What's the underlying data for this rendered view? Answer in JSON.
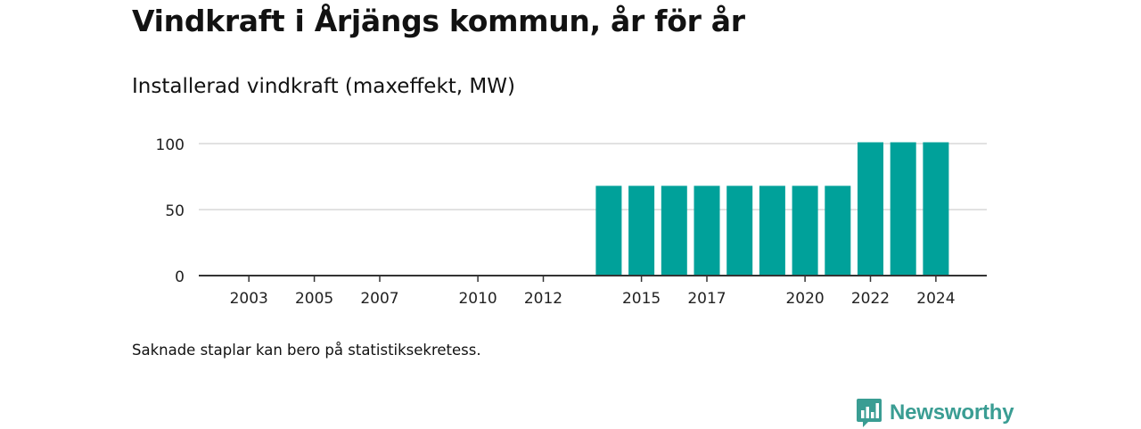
{
  "header": {
    "title": "Vindkraft i Årjängs kommun, år för år",
    "subtitle": "Installerad vindkraft (maxeffekt, MW)"
  },
  "footnote": "Saknade staplar kan bero på statistiksekretess.",
  "brand": {
    "name": "Newsworthy",
    "icon": "newsworthy-logo-icon",
    "color": "#3a9d93"
  },
  "chart_data": {
    "type": "bar",
    "categories": [
      "2002",
      "2003",
      "2004",
      "2005",
      "2006",
      "2007",
      "2008",
      "2009",
      "2010",
      "2011",
      "2012",
      "2013",
      "2014",
      "2015",
      "2016",
      "2017",
      "2018",
      "2019",
      "2020",
      "2021",
      "2022",
      "2023",
      "2024"
    ],
    "x_tick_labels": [
      "2003",
      "2005",
      "2007",
      "2010",
      "2012",
      "2015",
      "2017",
      "2020",
      "2022",
      "2024"
    ],
    "values": [
      0,
      0,
      0,
      0,
      0,
      0,
      0,
      0,
      0,
      0,
      0,
      0,
      68,
      68,
      68,
      68,
      68,
      68,
      68,
      68,
      101,
      101,
      101
    ],
    "ylim": [
      0,
      100
    ],
    "y_ticks": [
      0,
      50,
      100
    ],
    "grid": true,
    "bar_color": "#00a19a"
  }
}
